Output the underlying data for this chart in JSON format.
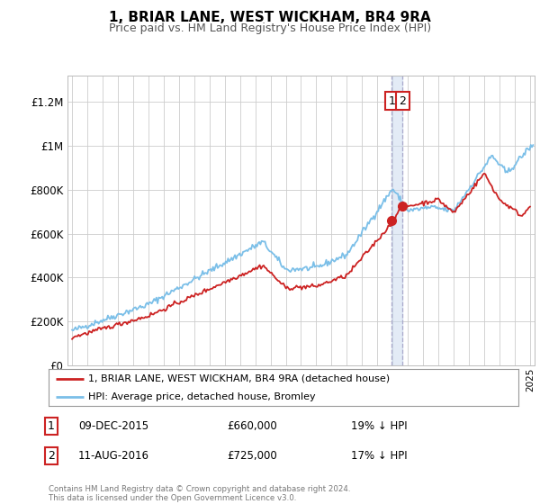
{
  "title": "1, BRIAR LANE, WEST WICKHAM, BR4 9RA",
  "subtitle": "Price paid vs. HM Land Registry's House Price Index (HPI)",
  "ylabel_ticks": [
    "£0",
    "£200K",
    "£400K",
    "£600K",
    "£800K",
    "£1M",
    "£1.2M"
  ],
  "ytick_values": [
    0,
    200000,
    400000,
    600000,
    800000,
    1000000,
    1200000
  ],
  "ylim": [
    0,
    1320000
  ],
  "xlim_start": 1994.7,
  "xlim_end": 2025.3,
  "hpi_color": "#7bbfe8",
  "property_color": "#cc2222",
  "transaction1_date": 2015.93,
  "transaction1_price": 660000,
  "transaction2_date": 2016.62,
  "transaction2_price": 725000,
  "transaction1_text": "09-DEC-2015",
  "transaction1_price_str": "£660,000",
  "transaction1_pct": "19% ↓ HPI",
  "transaction2_text": "11-AUG-2016",
  "transaction2_price_str": "£725,000",
  "transaction2_pct": "17% ↓ HPI",
  "legend_label_property": "1, BRIAR LANE, WEST WICKHAM, BR4 9RA (detached house)",
  "legend_label_hpi": "HPI: Average price, detached house, Bromley",
  "footer": "Contains HM Land Registry data © Crown copyright and database right 2024.\nThis data is licensed under the Open Government Licence v3.0.",
  "background_color": "#ffffff",
  "grid_color": "#cccccc",
  "shade_color": "#c8d8ee"
}
